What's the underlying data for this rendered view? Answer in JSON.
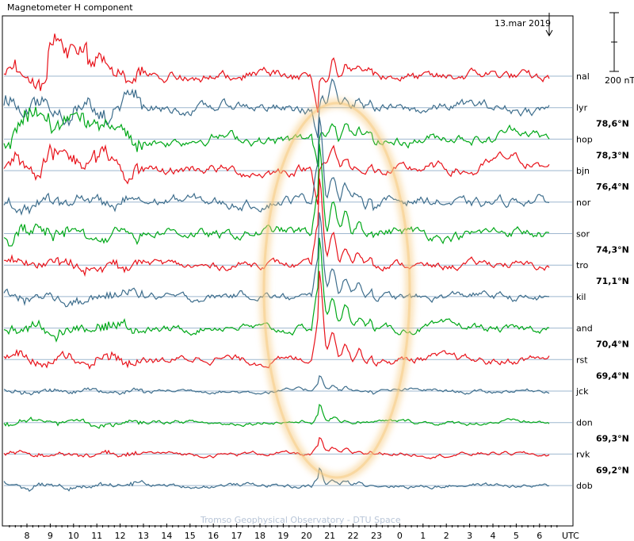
{
  "chart_data": {
    "type": "line",
    "title": "Magnetometer H component",
    "date_label": "13.mar 2019",
    "scale_label": "200 nT",
    "credit": "Tromso Geophysical Observatory - DTU Space",
    "xlabel": "UTC",
    "x_ticks": [
      "8",
      "9",
      "10",
      "11",
      "12",
      "13",
      "14",
      "15",
      "16",
      "17",
      "18",
      "19",
      "20",
      "21",
      "22",
      "23",
      "0",
      "1",
      "2",
      "3",
      "4",
      "5",
      "6"
    ],
    "series_colors": [
      "#e8121a",
      "#3d6d8c",
      "#00a818"
    ],
    "baseline_color": "#9eb7cf",
    "highlight_color": "#f6c87a",
    "stations": [
      {
        "code": "nal",
        "lat": ""
      },
      {
        "code": "lyr",
        "lat": "78,6°N"
      },
      {
        "code": "hop",
        "lat": "78,3°N"
      },
      {
        "code": "bjn",
        "lat": "76,4°N"
      },
      {
        "code": "nor",
        "lat": ""
      },
      {
        "code": "sor",
        "lat": "74,3°N"
      },
      {
        "code": "tro",
        "lat": "71,1°N"
      },
      {
        "code": "kil",
        "lat": ""
      },
      {
        "code": "and",
        "lat": "70,4°N"
      },
      {
        "code": "rst",
        "lat": "69,4°N"
      },
      {
        "code": "jck",
        "lat": ""
      },
      {
        "code": "don",
        "lat": "69,3°N"
      },
      {
        "code": "rvk",
        "lat": "69,2°N"
      },
      {
        "code": "dob",
        "lat": ""
      }
    ]
  }
}
